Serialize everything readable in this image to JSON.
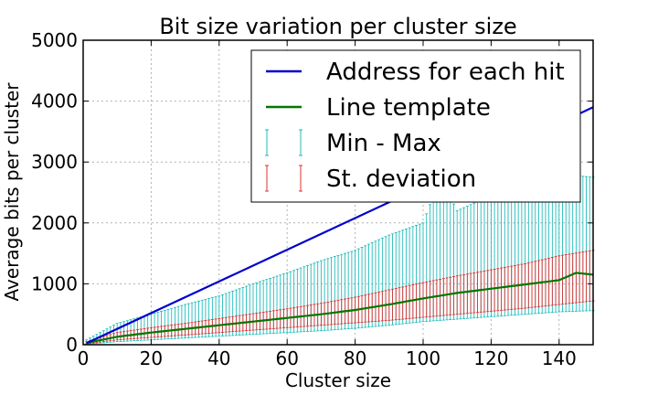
{
  "chart_data": {
    "type": "line",
    "title": "Bit size variation per cluster size",
    "xlabel": "Cluster size",
    "ylabel": "Average bits per cluster",
    "xlim": [
      0,
      150
    ],
    "ylim": [
      0,
      5000
    ],
    "xticks": [
      0,
      20,
      40,
      60,
      80,
      100,
      120,
      140
    ],
    "yticks": [
      0,
      1000,
      2000,
      3000,
      4000,
      5000
    ],
    "grid": true,
    "legend_position": "upper-right",
    "series": [
      {
        "name": "Address for each hit",
        "style": "line",
        "color": "#0000cc",
        "x": [
          1,
          150
        ],
        "y": [
          26,
          3900
        ]
      },
      {
        "name": "Line template",
        "style": "line",
        "color": "#007700",
        "x": [
          1,
          10,
          20,
          30,
          40,
          50,
          60,
          70,
          80,
          90,
          100,
          110,
          120,
          130,
          140,
          145,
          150
        ],
        "y": [
          30,
          130,
          200,
          260,
          320,
          380,
          440,
          500,
          570,
          660,
          760,
          850,
          920,
          990,
          1060,
          1180,
          1150
        ]
      },
      {
        "name": "Min - Max",
        "style": "errorbar",
        "color": "#22bbbb",
        "x": [
          1,
          10,
          20,
          30,
          40,
          50,
          60,
          70,
          80,
          90,
          100,
          105,
          110,
          120,
          130,
          140,
          150
        ],
        "low": [
          10,
          50,
          80,
          110,
          140,
          170,
          200,
          230,
          270,
          320,
          380,
          400,
          420,
          460,
          500,
          540,
          560
        ],
        "high": [
          80,
          350,
          500,
          660,
          800,
          1000,
          1180,
          1380,
          1550,
          1800,
          2000,
          2750,
          2200,
          2450,
          2600,
          2800,
          2750
        ]
      },
      {
        "name": "St. deviation",
        "style": "errorbar",
        "color": "#dd3333",
        "x": [
          1,
          10,
          20,
          30,
          40,
          50,
          60,
          70,
          80,
          90,
          100,
          110,
          120,
          130,
          140,
          150
        ],
        "low": [
          15,
          80,
          120,
          160,
          200,
          240,
          280,
          320,
          360,
          400,
          450,
          500,
          550,
          600,
          660,
          720
        ],
        "high": [
          50,
          200,
          280,
          350,
          430,
          510,
          590,
          680,
          780,
          900,
          1020,
          1130,
          1230,
          1330,
          1460,
          1550
        ]
      }
    ]
  }
}
